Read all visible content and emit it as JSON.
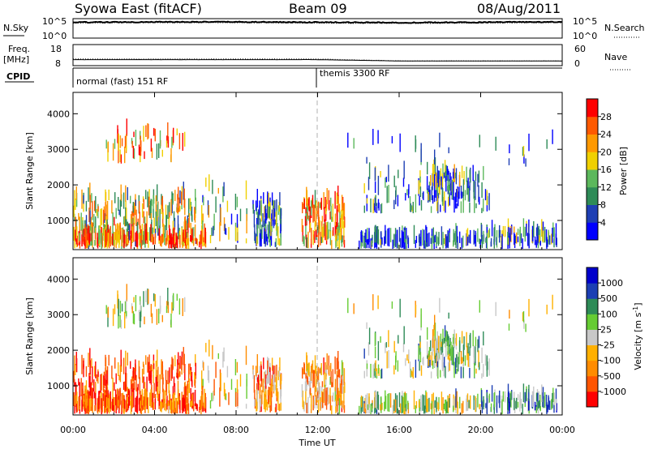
{
  "header": {
    "station": "Syowa East (fitACF)",
    "beam": "Beam 09",
    "date": "08/Aug/2011"
  },
  "strips": {
    "nsky_label": "N.Sky",
    "nsky_ticks": [
      "10^5",
      "10^0"
    ],
    "nsearch_label": "N.Search",
    "freq_label_1": "Freq.",
    "freq_label_2": "[MHz]",
    "freq_ticks": [
      "18",
      "8"
    ],
    "nave_label": "Nave",
    "nave_ticks": [
      "60",
      "0"
    ],
    "cpid_label": "CPID",
    "cpid_segments": [
      "normal (fast) 151 RF",
      "themis 3300 RF"
    ]
  },
  "colors": {
    "power_scale": [
      "#0000ff",
      "#1e3fb4",
      "#2e8b57",
      "#5cb85c",
      "#f0d000",
      "#ff9900",
      "#ff5a00",
      "#ff0000"
    ],
    "velocity_scale": [
      "#ff0000",
      "#ff5500",
      "#ff8c00",
      "#ffb000",
      "#c8c8c8",
      "#66cc33",
      "#2e8b57",
      "#1c3fb4",
      "#0000cc"
    ],
    "frame": "#000000",
    "noon_line": "#b0b0b0"
  },
  "chart_data": [
    {
      "type": "line",
      "title": "N.Sky / N.Search",
      "x": [
        "00:00",
        "04:00",
        "08:00",
        "12:00",
        "16:00",
        "20:00",
        "00:00"
      ],
      "ylim": [
        "10^0",
        "10^5"
      ],
      "series": [
        {
          "name": "N.Sky",
          "values": [
            4.2,
            4.3,
            4.3,
            4.2,
            4.1,
            4.2,
            4.3
          ]
        },
        {
          "name": "N.Search",
          "values": [
            4.0,
            4.1,
            4.1,
            4.0,
            3.9,
            4.0,
            4.1
          ]
        }
      ]
    },
    {
      "type": "line",
      "title": "Freq. [MHz] / Nave",
      "x": [
        "00:00",
        "04:00",
        "08:00",
        "12:00",
        "16:00",
        "20:00",
        "00:00"
      ],
      "ylim": [
        8,
        18
      ],
      "series": [
        {
          "name": "Freq.",
          "values": [
            11,
            11,
            11,
            11,
            10,
            10,
            10
          ]
        },
        {
          "name": "Nave",
          "values": [
            16,
            16,
            16,
            16,
            12,
            12,
            12
          ]
        }
      ]
    },
    {
      "type": "heatmap",
      "title": "Power [dB]",
      "xlabel": "Time UT",
      "ylabel": "Slant Range [km]",
      "xticks": [
        "00:00",
        "04:00",
        "08:00",
        "12:00",
        "16:00",
        "20:00",
        "00:00"
      ],
      "yticks": [
        "1000",
        "2000",
        "3000",
        "4000"
      ],
      "ylim": [
        180,
        4600
      ],
      "colorbar_label": "Power [dB]",
      "colorbar_ticks": [
        "4",
        "8",
        "12",
        "16",
        "20",
        "24",
        "28"
      ]
    },
    {
      "type": "heatmap",
      "title": "Velocity [m s^-1]",
      "xlabel": "Time UT",
      "ylabel": "Slant Range [km]",
      "xticks": [
        "00:00",
        "04:00",
        "08:00",
        "12:00",
        "16:00",
        "20:00",
        "00:00"
      ],
      "yticks": [
        "1000",
        "2000",
        "3000",
        "4000"
      ],
      "ylim": [
        180,
        4600
      ],
      "colorbar_label": "Velocity [m s",
      "colorbar_label_sup": "-1",
      "colorbar_label_end": "]",
      "colorbar_ticks": [
        "1000",
        "500",
        "100",
        "25",
        "-25",
        "-100",
        "-500",
        "-1000"
      ]
    }
  ],
  "xaxis": {
    "label": "Time UT",
    "ticks": [
      "00:00",
      "04:00",
      "08:00",
      "12:00",
      "16:00",
      "20:00",
      "00:00"
    ]
  }
}
